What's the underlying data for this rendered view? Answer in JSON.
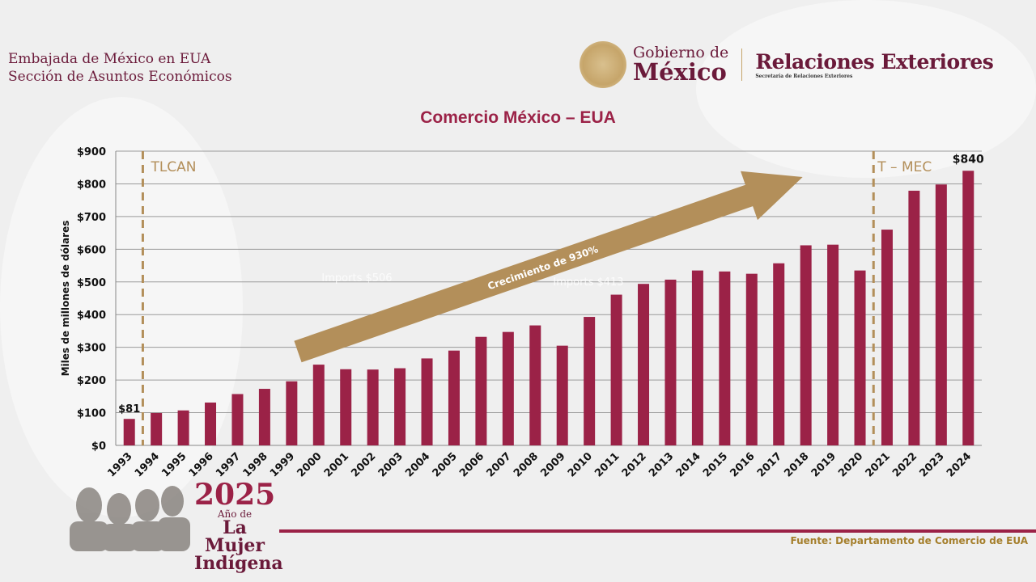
{
  "header": {
    "line1": "Embajada de México en EUA",
    "line2": "Sección de Asuntos Económicos",
    "logo_gobierno_line1": "Gobierno de",
    "logo_gobierno_line2": "México",
    "logo_rel_line1": "Relaciones Exteriores",
    "logo_rel_line2": "Secretaría de Relaciones Exteriores"
  },
  "banner": {
    "year": "2025",
    "line2": "Año de",
    "line3": "La Mujer",
    "line4": "Indígena"
  },
  "footer": {
    "source": "Fuente: Departamento de Comercio de EUA"
  },
  "colors": {
    "bar": "#9b2247",
    "accent": "#b38f5a",
    "title": "#9b2247"
  },
  "chart_data": {
    "type": "bar",
    "title": "Comercio México – EUA",
    "ylabel": "Miles de millones de dólares",
    "xlabel": "",
    "ylim": [
      0,
      900
    ],
    "yticks": [
      "$0",
      "$100",
      "$200",
      "$300",
      "$400",
      "$500",
      "$600",
      "$700",
      "$800",
      "$900"
    ],
    "grid": true,
    "categories": [
      "1993",
      "1994",
      "1995",
      "1996",
      "1997",
      "1998",
      "1999",
      "2000",
      "2001",
      "2002",
      "2003",
      "2004",
      "2005",
      "2006",
      "2007",
      "2008",
      "2009",
      "2010",
      "2011",
      "2012",
      "2013",
      "2014",
      "2015",
      "2016",
      "2017",
      "2018",
      "2019",
      "2020",
      "2021",
      "2022",
      "2023",
      "2024"
    ],
    "values": [
      81,
      99,
      107,
      131,
      157,
      173,
      196,
      247,
      233,
      232,
      236,
      266,
      290,
      332,
      347,
      367,
      305,
      393,
      461,
      494,
      507,
      535,
      532,
      525,
      557,
      612,
      614,
      535,
      660,
      779,
      798,
      840
    ],
    "data_labels": {
      "first": "$81",
      "last": "$840"
    },
    "annotations": {
      "tlcan": "TLCAN",
      "tmec": "T – MEC",
      "arrow": "Crecimiento de 930%",
      "ghost1": "Imports $506",
      "ghost2": "Imports $413"
    }
  }
}
